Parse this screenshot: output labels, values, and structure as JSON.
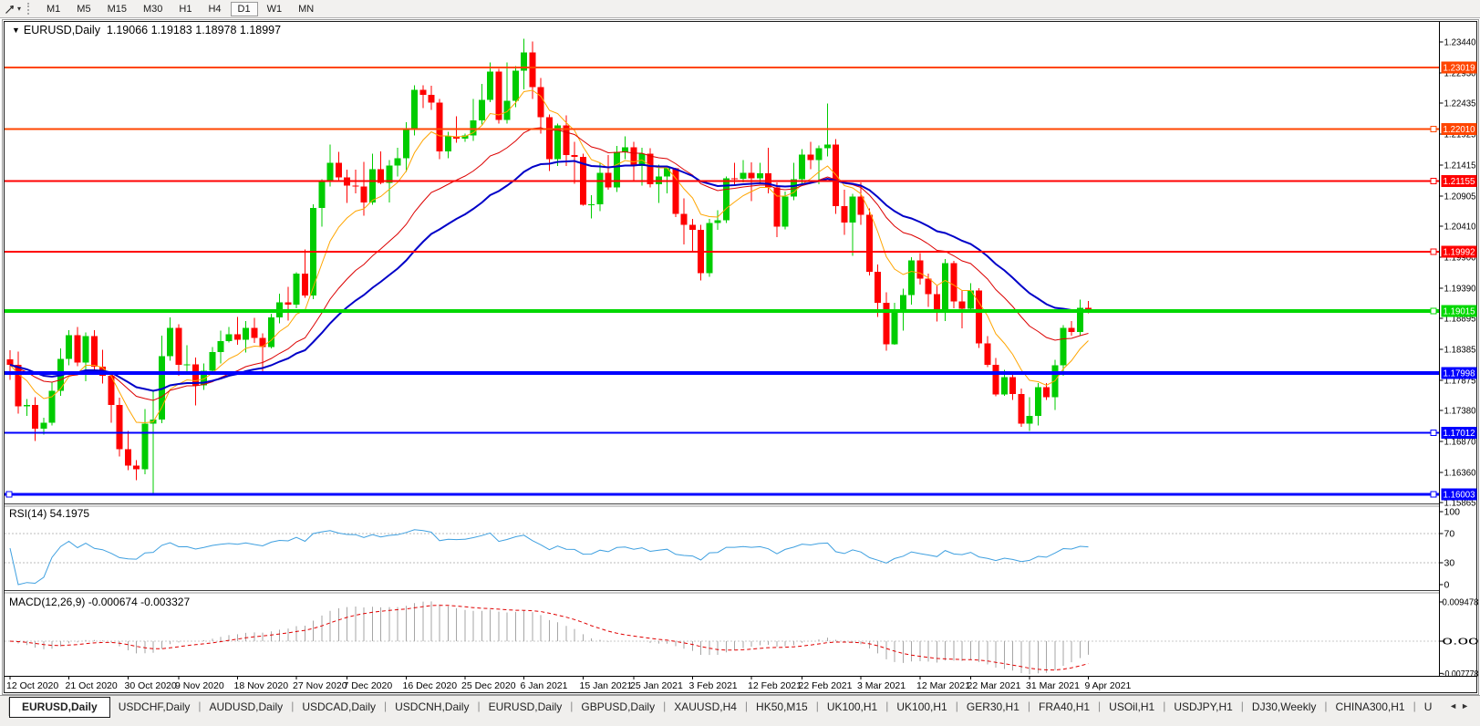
{
  "toolbar": {
    "timeframes": [
      {
        "label": "M1",
        "active": false
      },
      {
        "label": "M5",
        "active": false
      },
      {
        "label": "M15",
        "active": false
      },
      {
        "label": "M30",
        "active": false
      },
      {
        "label": "H1",
        "active": false
      },
      {
        "label": "H4",
        "active": false
      },
      {
        "label": "D1",
        "active": true
      },
      {
        "label": "W1",
        "active": false
      },
      {
        "label": "MN",
        "active": false
      }
    ],
    "dropdown_arrow": "▾"
  },
  "window": {
    "title_arrow": "▼",
    "symbol": "EURUSD,Daily",
    "ohlc": "1.19066 1.19183 1.18978 1.18997"
  },
  "chart_data": {
    "type": "candlestick",
    "symbol": "EURUSD",
    "timeframe": "Daily",
    "y_ticks": [
      1.2344,
      1.2293,
      1.22435,
      1.21925,
      1.21415,
      1.20905,
      1.2041,
      1.199,
      1.1939,
      1.18895,
      1.18385,
      1.17875,
      1.1738,
      1.1687,
      1.1636,
      1.15865
    ],
    "x_labels": [
      {
        "label": "12 Oct 2020",
        "bar": 0
      },
      {
        "label": "21 Oct 2020",
        "bar": 7
      },
      {
        "label": "30 Oct 2020",
        "bar": 14
      },
      {
        "label": "9 Nov 2020",
        "bar": 20
      },
      {
        "label": "18 Nov 2020",
        "bar": 27
      },
      {
        "label": "27 Nov 2020",
        "bar": 34
      },
      {
        "label": "7 Dec 2020",
        "bar": 40
      },
      {
        "label": "16 Dec 2020",
        "bar": 47
      },
      {
        "label": "25 Dec 2020",
        "bar": 54
      },
      {
        "label": "6 Jan 2021",
        "bar": 61
      },
      {
        "label": "15 Jan 2021",
        "bar": 68
      },
      {
        "label": "25 Jan 2021",
        "bar": 74
      },
      {
        "label": "3 Feb 2021",
        "bar": 81
      },
      {
        "label": "12 Feb 2021",
        "bar": 88
      },
      {
        "label": "22 Feb 2021",
        "bar": 94
      },
      {
        "label": "3 Mar 2021",
        "bar": 101
      },
      {
        "label": "12 Mar 2021",
        "bar": 108
      },
      {
        "label": "22 Mar 2021",
        "bar": 114
      },
      {
        "label": "31 Mar 2021",
        "bar": 121
      },
      {
        "label": "9 Apr 2021",
        "bar": 128
      }
    ],
    "candles": [
      [
        1.1822,
        1.1837,
        1.1788,
        1.1813
      ],
      [
        1.1813,
        1.1835,
        1.1733,
        1.1745
      ],
      [
        1.1745,
        1.1757,
        1.1729,
        1.1747
      ],
      [
        1.1747,
        1.176,
        1.1688,
        1.1708
      ],
      [
        1.1708,
        1.1726,
        1.1698,
        1.1718
      ],
      [
        1.1718,
        1.1785,
        1.1713,
        1.177
      ],
      [
        1.177,
        1.184,
        1.1762,
        1.1823
      ],
      [
        1.1823,
        1.187,
        1.1812,
        1.1862
      ],
      [
        1.1862,
        1.1875,
        1.1811,
        1.1817
      ],
      [
        1.1817,
        1.1866,
        1.1786,
        1.186
      ],
      [
        1.186,
        1.187,
        1.18,
        1.181
      ],
      [
        1.181,
        1.1838,
        1.1782,
        1.1795
      ],
      [
        1.1795,
        1.18,
        1.1718,
        1.1747
      ],
      [
        1.1747,
        1.1759,
        1.1662,
        1.1674
      ],
      [
        1.1674,
        1.1704,
        1.164,
        1.1647
      ],
      [
        1.1647,
        1.1656,
        1.1623,
        1.1641
      ],
      [
        1.1641,
        1.174,
        1.1633,
        1.1716
      ],
      [
        1.1716,
        1.1771,
        1.1602,
        1.1723
      ],
      [
        1.1723,
        1.1861,
        1.1717,
        1.1827
      ],
      [
        1.1827,
        1.1891,
        1.182,
        1.1874
      ],
      [
        1.1874,
        1.188,
        1.1795,
        1.1813
      ],
      [
        1.1813,
        1.1845,
        1.18,
        1.1814
      ],
      [
        1.1814,
        1.1825,
        1.1746,
        1.1779
      ],
      [
        1.1779,
        1.1815,
        1.1772,
        1.1803
      ],
      [
        1.1803,
        1.1842,
        1.1799,
        1.1834
      ],
      [
        1.1834,
        1.1869,
        1.1815,
        1.1852
      ],
      [
        1.1852,
        1.1875,
        1.185,
        1.1863
      ],
      [
        1.1863,
        1.1892,
        1.1846,
        1.1854
      ],
      [
        1.1854,
        1.1885,
        1.1833,
        1.1874
      ],
      [
        1.1874,
        1.189,
        1.1849,
        1.1857
      ],
      [
        1.1857,
        1.1865,
        1.18,
        1.1842
      ],
      [
        1.1842,
        1.1897,
        1.184,
        1.1891
      ],
      [
        1.1891,
        1.193,
        1.1881,
        1.1916
      ],
      [
        1.1916,
        1.1941,
        1.1886,
        1.1912
      ],
      [
        1.1912,
        1.1965,
        1.1906,
        1.1963
      ],
      [
        1.1963,
        1.2003,
        1.1923,
        1.1927
      ],
      [
        1.1927,
        1.2077,
        1.1921,
        1.2071
      ],
      [
        1.2071,
        1.2118,
        1.204,
        1.2115
      ],
      [
        1.2115,
        1.2175,
        1.2106,
        1.2145
      ],
      [
        1.2145,
        1.2163,
        1.2115,
        1.2121
      ],
      [
        1.2121,
        1.2134,
        1.2079,
        1.2108
      ],
      [
        1.2108,
        1.2134,
        1.2095,
        1.2106
      ],
      [
        1.2106,
        1.2147,
        1.2058,
        1.208
      ],
      [
        1.208,
        1.216,
        1.2076,
        1.2135
      ],
      [
        1.2135,
        1.2164,
        1.211,
        1.2112
      ],
      [
        1.2112,
        1.215,
        1.208,
        1.2141
      ],
      [
        1.2141,
        1.217,
        1.2123,
        1.2153
      ],
      [
        1.2153,
        1.2212,
        1.213,
        1.2199
      ],
      [
        1.2199,
        1.2273,
        1.219,
        1.2265
      ],
      [
        1.2265,
        1.2273,
        1.2235,
        1.2257
      ],
      [
        1.2257,
        1.2272,
        1.2232,
        1.2244
      ],
      [
        1.2244,
        1.225,
        1.2151,
        1.2164
      ],
      [
        1.2164,
        1.2196,
        1.2153,
        1.2189
      ],
      [
        1.2189,
        1.2222,
        1.2178,
        1.2185
      ],
      [
        1.2185,
        1.2193,
        1.218,
        1.219
      ],
      [
        1.219,
        1.225,
        1.2181,
        1.2215
      ],
      [
        1.2215,
        1.2275,
        1.2208,
        1.2249
      ],
      [
        1.2249,
        1.231,
        1.2245,
        1.2295
      ],
      [
        1.2295,
        1.23,
        1.221,
        1.2216
      ],
      [
        1.2216,
        1.231,
        1.221,
        1.2247
      ],
      [
        1.2247,
        1.2304,
        1.2237,
        1.2297
      ],
      [
        1.2297,
        1.2349,
        1.2266,
        1.2327
      ],
      [
        1.2327,
        1.2345,
        1.225,
        1.227
      ],
      [
        1.227,
        1.2285,
        1.2193,
        1.222
      ],
      [
        1.222,
        1.2225,
        1.2132,
        1.2151
      ],
      [
        1.2151,
        1.221,
        1.214,
        1.2207
      ],
      [
        1.2207,
        1.2223,
        1.214,
        1.2158
      ],
      [
        1.2158,
        1.218,
        1.2111,
        1.2155
      ],
      [
        1.2155,
        1.216,
        1.2075,
        1.2076
      ],
      [
        1.2076,
        1.2092,
        1.2054,
        1.2077
      ],
      [
        1.2077,
        1.2145,
        1.2066,
        1.2129
      ],
      [
        1.2129,
        1.2158,
        1.2101,
        1.2105
      ],
      [
        1.2105,
        1.2173,
        1.2097,
        1.2163
      ],
      [
        1.2163,
        1.2189,
        1.2151,
        1.2171
      ],
      [
        1.2171,
        1.218,
        1.2116,
        1.214
      ],
      [
        1.214,
        1.217,
        1.2108,
        1.216
      ],
      [
        1.216,
        1.2169,
        1.2105,
        1.211
      ],
      [
        1.211,
        1.2142,
        1.2079,
        1.2123
      ],
      [
        1.2123,
        1.214,
        1.2095,
        1.2136
      ],
      [
        1.2136,
        1.2137,
        1.2056,
        1.2061
      ],
      [
        1.2061,
        1.2087,
        1.2011,
        1.2043
      ],
      [
        1.2043,
        1.2053,
        1.1999,
        1.2035
      ],
      [
        1.2035,
        1.2043,
        1.1952,
        1.1964
      ],
      [
        1.1964,
        1.2053,
        1.1958,
        1.2046
      ],
      [
        1.2046,
        1.2067,
        1.2035,
        1.2051
      ],
      [
        1.2051,
        1.2123,
        1.2046,
        1.212
      ],
      [
        1.212,
        1.2145,
        1.2109,
        1.2119
      ],
      [
        1.2119,
        1.215,
        1.2113,
        1.2129
      ],
      [
        1.2129,
        1.2146,
        1.2082,
        1.212
      ],
      [
        1.212,
        1.2145,
        1.211,
        1.2128
      ],
      [
        1.2128,
        1.217,
        1.2095,
        1.2105
      ],
      [
        1.2105,
        1.2113,
        1.2023,
        1.204
      ],
      [
        1.204,
        1.2098,
        1.2036,
        1.209
      ],
      [
        1.209,
        1.2145,
        1.2084,
        1.2118
      ],
      [
        1.2118,
        1.2168,
        1.2108,
        1.2159
      ],
      [
        1.2159,
        1.218,
        1.2135,
        1.215
      ],
      [
        1.215,
        1.2174,
        1.211,
        1.2169
      ],
      [
        1.2169,
        1.2243,
        1.2156,
        1.2175
      ],
      [
        1.2175,
        1.2184,
        1.2061,
        1.2074
      ],
      [
        1.2074,
        1.2101,
        1.2027,
        1.2047
      ],
      [
        1.2047,
        1.2094,
        1.1992,
        1.209
      ],
      [
        1.209,
        1.2113,
        1.2043,
        1.206
      ],
      [
        1.206,
        1.207,
        1.196,
        1.1966
      ],
      [
        1.1966,
        1.1978,
        1.1892,
        1.1915
      ],
      [
        1.1915,
        1.1932,
        1.1836,
        1.1847
      ],
      [
        1.1847,
        1.1915,
        1.1846,
        1.1899
      ],
      [
        1.1899,
        1.1938,
        1.1869,
        1.1928
      ],
      [
        1.1928,
        1.199,
        1.1912,
        1.1985
      ],
      [
        1.1985,
        1.1997,
        1.1945,
        1.1955
      ],
      [
        1.1955,
        1.1963,
        1.1908,
        1.1929
      ],
      [
        1.1929,
        1.1943,
        1.1884,
        1.1899
      ],
      [
        1.1899,
        1.1987,
        1.1885,
        1.198
      ],
      [
        1.198,
        1.1984,
        1.1906,
        1.1917
      ],
      [
        1.1917,
        1.1936,
        1.1873,
        1.1905
      ],
      [
        1.1905,
        1.1947,
        1.1902,
        1.1935
      ],
      [
        1.1935,
        1.1939,
        1.1841,
        1.1848
      ],
      [
        1.1848,
        1.186,
        1.1809,
        1.1813
      ],
      [
        1.1813,
        1.1824,
        1.1761,
        1.1764
      ],
      [
        1.1764,
        1.1805,
        1.1762,
        1.1793
      ],
      [
        1.1793,
        1.1797,
        1.1755,
        1.1765
      ],
      [
        1.1765,
        1.1774,
        1.1711,
        1.1716
      ],
      [
        1.1716,
        1.176,
        1.1704,
        1.1729
      ],
      [
        1.1729,
        1.1783,
        1.1713,
        1.1776
      ],
      [
        1.1776,
        1.1783,
        1.1755,
        1.176
      ],
      [
        1.176,
        1.1821,
        1.1739,
        1.1812
      ],
      [
        1.1812,
        1.1878,
        1.1795,
        1.1874
      ],
      [
        1.1874,
        1.1885,
        1.1861,
        1.1867
      ],
      [
        1.1867,
        1.192,
        1.186,
        1.1907
      ],
      [
        1.19066,
        1.19183,
        1.18978,
        1.18997
      ]
    ],
    "hlines": [
      {
        "price": 1.23019,
        "label": "1.23019",
        "color": "#FF4500",
        "width": 2,
        "handle": false,
        "left_handle": false
      },
      {
        "price": 1.2201,
        "label": "1.22010",
        "color": "#FF4500",
        "width": 2,
        "handle": true,
        "left_handle": false
      },
      {
        "price": 1.21155,
        "label": "1.21155",
        "color": "#FF0000",
        "width": 2,
        "handle": true,
        "left_handle": false
      },
      {
        "price": 1.19992,
        "label": "1.19992",
        "color": "#FF0000",
        "width": 2,
        "handle": true,
        "left_handle": false
      },
      {
        "price": 1.19015,
        "label": "1.19015",
        "color": "#00D800",
        "width": 4,
        "handle": true,
        "left_handle": false
      },
      {
        "price": 1.17998,
        "label": "1.17998",
        "color": "#0000FF",
        "width": 4,
        "handle": false,
        "left_handle": false
      },
      {
        "price": 1.17012,
        "label": "1.17012",
        "color": "#0000FF",
        "width": 2,
        "handle": true,
        "left_handle": false
      },
      {
        "price": 1.16003,
        "label": "1.16003",
        "color": "#0000FF",
        "width": 3,
        "handle": true,
        "left_handle": true
      }
    ],
    "overlays": [
      {
        "name": "ma-fast",
        "type": "ema",
        "period": 8,
        "color": "#FFA500",
        "stroke_width": 1
      },
      {
        "name": "ma-mid",
        "type": "ema",
        "period": 21,
        "color": "#DC0000",
        "stroke_width": 1
      },
      {
        "name": "ma-slow",
        "type": "ema",
        "period": 34,
        "color": "#0000C8",
        "stroke_width": 2
      }
    ],
    "colors": {
      "up": "#00CC00",
      "down": "#FF0000",
      "background": "#FFFFFF",
      "axis": "#000000"
    }
  },
  "rsi_panel": {
    "label": "RSI(14) 54.1975",
    "period": 14,
    "value": 54.1975,
    "levels": [
      70,
      30
    ],
    "axis_labels": [
      {
        "text": "100",
        "value": 100
      },
      {
        "text": "70",
        "value": 70
      },
      {
        "text": "30",
        "value": 30
      },
      {
        "text": "0",
        "value": 0
      }
    ],
    "line_color": "#3FA0E0",
    "level_color": "#BBBBBB"
  },
  "macd_panel": {
    "label": "MACD(12,26,9) -0.000674 -0.003327",
    "fast": 12,
    "slow": 26,
    "signal": 9,
    "main_value": -0.000674,
    "signal_value": -0.003327,
    "axis_labels": [
      {
        "text": "0.009478",
        "value": 0.009478
      },
      {
        "text": "0.00",
        "value": 0
      },
      {
        "text": "-0.007778",
        "value": -0.007778
      }
    ],
    "hist_color": "#A6A6A6",
    "signal_color": "#E00000",
    "zero_line_color": "#C8C8C8"
  },
  "tabs": {
    "items": [
      {
        "label": "EURUSD,Daily",
        "active": true
      },
      {
        "label": "USDCHF,Daily",
        "active": false
      },
      {
        "label": "AUDUSD,Daily",
        "active": false
      },
      {
        "label": "USDCAD,Daily",
        "active": false
      },
      {
        "label": "USDCNH,Daily",
        "active": false
      },
      {
        "label": "EURUSD,Daily",
        "active": false
      },
      {
        "label": "GBPUSD,Daily",
        "active": false
      },
      {
        "label": "XAUUSD,H4",
        "active": false
      },
      {
        "label": "HK50,M15",
        "active": false
      },
      {
        "label": "UK100,H1",
        "active": false
      },
      {
        "label": "UK100,H1",
        "active": false
      },
      {
        "label": "GER30,H1",
        "active": false
      },
      {
        "label": "FRA40,H1",
        "active": false
      },
      {
        "label": "USOil,H1",
        "active": false
      },
      {
        "label": "USDJPY,H1",
        "active": false
      },
      {
        "label": "DJ30,Weekly",
        "active": false
      },
      {
        "label": "CHINA300,H1",
        "active": false
      },
      {
        "label": "U",
        "active": false
      }
    ],
    "scroll_left": "◄",
    "scroll_right": "►"
  }
}
